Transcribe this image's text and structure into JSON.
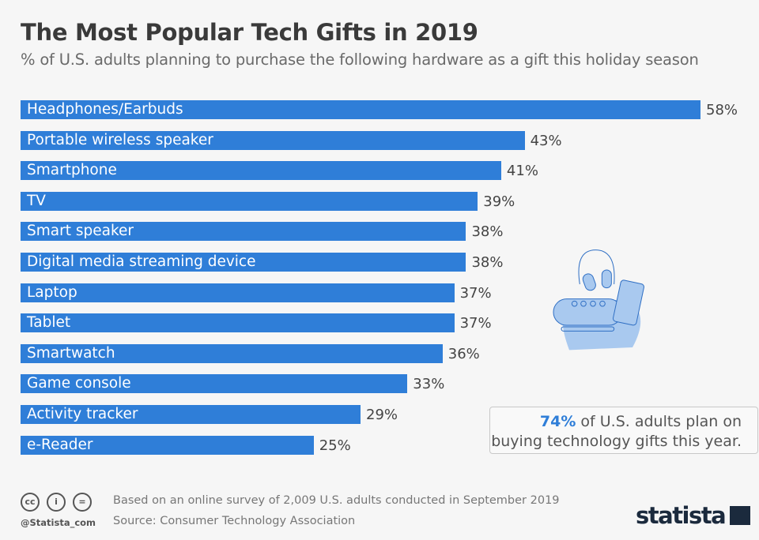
{
  "chart_data": {
    "type": "bar",
    "orientation": "horizontal",
    "title": "The Most Popular Tech Gifts in 2019",
    "subtitle": "% of U.S. adults planning to purchase the following hardware as a gift this holiday season",
    "categories": [
      "Headphones/Earbuds",
      "Portable wireless speaker",
      "Smartphone",
      "TV",
      "Smart speaker",
      "Digital media streaming device",
      "Laptop",
      "Tablet",
      "Smartwatch",
      "Game console",
      "Activity tracker",
      "e-Reader"
    ],
    "values": [
      58,
      43,
      41,
      39,
      38,
      38,
      37,
      37,
      36,
      33,
      29,
      25
    ],
    "value_labels": [
      "58%",
      "43%",
      "41%",
      "39%",
      "38%",
      "38%",
      "37%",
      "37%",
      "36%",
      "33%",
      "29%",
      "25%"
    ],
    "unit": "%",
    "xlim": [
      0,
      58
    ],
    "grid": false,
    "colors": {
      "bar": "#2f7ed8",
      "highlight": "#2f7ed8"
    }
  },
  "callout": {
    "highlight": "74%",
    "text_line1": " of U.S. adults plan on",
    "text_line2": "buying technology gifts this year."
  },
  "footer": {
    "note": "Based on an online survey of 2,009 U.S. adults conducted in September 2019",
    "source": "Source: Consumer Technology Association",
    "handle": "@Statista_com",
    "license_icons": [
      "cc-icon",
      "attribution-icon",
      "no-derivatives-icon"
    ],
    "logo": "statista"
  }
}
